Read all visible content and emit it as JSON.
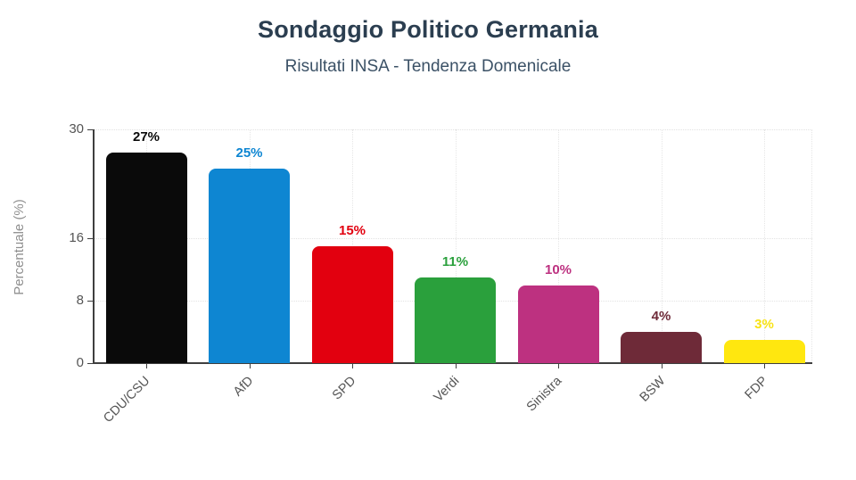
{
  "header": {
    "title": "Sondaggio Politico Germania",
    "subtitle": "Risultati INSA - Tendenza Domenicale"
  },
  "chart_data": {
    "type": "bar",
    "title": "Sondaggio Politico Germania",
    "subtitle": "Risultati INSA - Tendenza Domenicale",
    "categories": [
      "CDU/CSU",
      "AfD",
      "SPD",
      "Verdi",
      "Sinistra",
      "BSW",
      "FDP"
    ],
    "values": [
      27,
      25,
      15,
      11,
      10,
      4,
      3
    ],
    "value_labels": [
      "27%",
      "25%",
      "15%",
      "11%",
      "10%",
      "4%",
      "3%"
    ],
    "bar_colors": [
      "#0a0a0a",
      "#0e86d2",
      "#e2000f",
      "#2aa03c",
      "#bd3180",
      "#6e2a38",
      "#ffe70f"
    ],
    "label_colors": [
      "#0a0a0a",
      "#0e86d2",
      "#e2000f",
      "#2aa03c",
      "#bd3180",
      "#6e2a38",
      "#f8e316"
    ],
    "xlabel": "",
    "ylabel": "Percentuale (%)",
    "ylim": [
      0,
      30
    ],
    "yticks": [
      0,
      8,
      16,
      30
    ],
    "grid": "dotted horizontal at yticks, dotted vertical at category centers",
    "legend": "none",
    "bar_corner": "rounded-top"
  },
  "colors": {
    "title_text": "#2b3e50",
    "subtitle_text": "#3b5166",
    "axis": "#3f3f3f",
    "tick_text": "#555555",
    "y_axis_title_text": "#8f8f8f",
    "gridline": "#e4e4e4",
    "background": "#ffffff"
  }
}
